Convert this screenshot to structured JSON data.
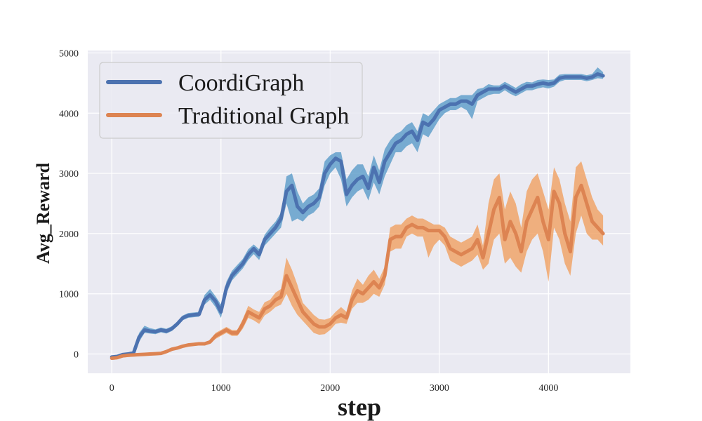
{
  "chart_data": {
    "type": "line",
    "title": "",
    "xlabel": "step",
    "ylabel": "Avg_Reward",
    "xlim": [
      -220,
      4750
    ],
    "ylim": [
      -320,
      5040
    ],
    "xticks": [
      0,
      1000,
      2000,
      3000,
      4000
    ],
    "yticks": [
      0,
      1000,
      2000,
      3000,
      4000,
      5000
    ],
    "grid": true,
    "legend_position": "top-left",
    "series": [
      {
        "name": "CoordiGraph",
        "color": "#4c72b0",
        "band_color": "#5a9bc8",
        "x": [
          0,
          50,
          100,
          150,
          200,
          250,
          300,
          350,
          400,
          450,
          500,
          550,
          600,
          650,
          700,
          750,
          800,
          850,
          900,
          950,
          1000,
          1050,
          1100,
          1150,
          1200,
          1250,
          1300,
          1350,
          1400,
          1450,
          1500,
          1550,
          1600,
          1650,
          1700,
          1750,
          1800,
          1850,
          1900,
          1950,
          2000,
          2050,
          2100,
          2150,
          2200,
          2250,
          2300,
          2350,
          2400,
          2450,
          2500,
          2550,
          2600,
          2650,
          2700,
          2750,
          2800,
          2850,
          2900,
          2950,
          3000,
          3050,
          3100,
          3150,
          3200,
          3250,
          3300,
          3350,
          3400,
          3450,
          3500,
          3550,
          3600,
          3650,
          3700,
          3750,
          3800,
          3850,
          3900,
          3950,
          4000,
          4050,
          4100,
          4150,
          4200,
          4250,
          4300,
          4350,
          4400,
          4450,
          4500
        ],
        "y": [
          -50,
          -40,
          -10,
          0,
          20,
          280,
          400,
          380,
          370,
          400,
          380,
          420,
          500,
          600,
          640,
          650,
          660,
          900,
          980,
          880,
          700,
          1100,
          1300,
          1400,
          1500,
          1650,
          1750,
          1650,
          1900,
          2000,
          2100,
          2250,
          2700,
          2800,
          2450,
          2350,
          2450,
          2500,
          2600,
          3000,
          3150,
          3250,
          3200,
          2650,
          2800,
          2900,
          2950,
          2750,
          3100,
          2850,
          3200,
          3350,
          3500,
          3550,
          3650,
          3700,
          3550,
          3850,
          3800,
          3900,
          4050,
          4100,
          4150,
          4150,
          4200,
          4200,
          4150,
          4300,
          4350,
          4400,
          4400,
          4400,
          4450,
          4400,
          4350,
          4400,
          4450,
          4450,
          4480,
          4500,
          4480,
          4500,
          4580,
          4600,
          4600,
          4600,
          4600,
          4580,
          4600,
          4650,
          4620
        ],
        "y_lower": [
          -80,
          -70,
          -40,
          -30,
          -10,
          200,
          350,
          340,
          330,
          360,
          340,
          380,
          460,
          560,
          600,
          610,
          620,
          820,
          900,
          780,
          600,
          1000,
          1220,
          1320,
          1420,
          1560,
          1660,
          1560,
          1800,
          1900,
          2000,
          2100,
          2500,
          2200,
          2250,
          2200,
          2300,
          2350,
          2450,
          2800,
          3000,
          3100,
          2900,
          2450,
          2600,
          2700,
          2750,
          2550,
          2850,
          2650,
          2950,
          3150,
          3350,
          3350,
          3450,
          3500,
          3350,
          3650,
          3600,
          3750,
          3900,
          4000,
          4050,
          4050,
          4100,
          4050,
          3900,
          4200,
          4250,
          4300,
          4320,
          4320,
          4380,
          4320,
          4280,
          4330,
          4380,
          4380,
          4410,
          4430,
          4410,
          4440,
          4520,
          4550,
          4550,
          4550,
          4550,
          4530,
          4550,
          4580,
          4570
        ],
        "y_upper": [
          -30,
          -20,
          10,
          20,
          50,
          350,
          470,
          430,
          410,
          440,
          420,
          460,
          540,
          640,
          680,
          690,
          700,
          980,
          1080,
          960,
          820,
          1200,
          1380,
          1480,
          1580,
          1740,
          1820,
          1740,
          1980,
          2100,
          2200,
          2350,
          2950,
          3000,
          2700,
          2500,
          2600,
          2650,
          2750,
          3200,
          3300,
          3350,
          3350,
          2900,
          3050,
          3150,
          3150,
          2950,
          3300,
          3050,
          3400,
          3550,
          3650,
          3700,
          3800,
          3850,
          3700,
          4000,
          3950,
          4050,
          4150,
          4200,
          4250,
          4250,
          4300,
          4300,
          4300,
          4400,
          4420,
          4480,
          4460,
          4460,
          4520,
          4470,
          4420,
          4480,
          4520,
          4510,
          4550,
          4560,
          4550,
          4560,
          4640,
          4650,
          4650,
          4650,
          4650,
          4630,
          4650,
          4760,
          4680
        ]
      },
      {
        "name": "Traditional Graph",
        "color": "#dd8452",
        "band_color": "#f0a060",
        "x": [
          0,
          50,
          100,
          150,
          200,
          250,
          300,
          350,
          400,
          450,
          500,
          550,
          600,
          650,
          700,
          750,
          800,
          850,
          900,
          950,
          1000,
          1050,
          1100,
          1150,
          1200,
          1250,
          1300,
          1350,
          1400,
          1450,
          1500,
          1550,
          1600,
          1650,
          1700,
          1750,
          1800,
          1850,
          1900,
          1950,
          2000,
          2050,
          2100,
          2150,
          2200,
          2250,
          2300,
          2350,
          2400,
          2450,
          2500,
          2550,
          2600,
          2650,
          2700,
          2750,
          2800,
          2850,
          2900,
          2950,
          3000,
          3050,
          3100,
          3150,
          3200,
          3250,
          3300,
          3350,
          3400,
          3450,
          3500,
          3550,
          3600,
          3650,
          3700,
          3750,
          3800,
          3850,
          3900,
          3950,
          4000,
          4050,
          4100,
          4150,
          4200,
          4250,
          4300,
          4350,
          4400,
          4450,
          4500
        ],
        "y": [
          -70,
          -60,
          -30,
          -20,
          -15,
          -10,
          -5,
          0,
          5,
          10,
          40,
          80,
          100,
          130,
          150,
          160,
          170,
          170,
          200,
          300,
          350,
          400,
          350,
          350,
          500,
          700,
          650,
          600,
          750,
          800,
          900,
          950,
          1300,
          1100,
          900,
          700,
          600,
          500,
          450,
          450,
          500,
          600,
          650,
          600,
          900,
          1050,
          1000,
          1100,
          1200,
          1100,
          1300,
          1900,
          1950,
          1950,
          2100,
          2150,
          2100,
          2100,
          2050,
          2050,
          2050,
          1950,
          1750,
          1700,
          1650,
          1700,
          1750,
          1900,
          1600,
          2000,
          2400,
          2600,
          1900,
          2200,
          2000,
          1700,
          2200,
          2400,
          2600,
          2200,
          1900,
          2700,
          2500,
          2000,
          1700,
          2600,
          2800,
          2500,
          2200,
          2100,
          2000
        ],
        "y_lower": [
          -100,
          -90,
          -60,
          -50,
          -40,
          -35,
          -30,
          -25,
          -20,
          -15,
          15,
          55,
          75,
          105,
          125,
          135,
          145,
          145,
          170,
          250,
          300,
          350,
          300,
          300,
          420,
          600,
          560,
          500,
          640,
          700,
          780,
          820,
          1000,
          800,
          650,
          550,
          450,
          350,
          320,
          330,
          400,
          500,
          520,
          500,
          750,
          850,
          850,
          900,
          1000,
          950,
          1150,
          1700,
          1750,
          1750,
          1950,
          2000,
          1950,
          1950,
          1600,
          1800,
          1900,
          1800,
          1550,
          1500,
          1450,
          1500,
          1550,
          1650,
          1400,
          1500,
          1900,
          2000,
          1500,
          1600,
          1450,
          1350,
          1700,
          1900,
          2000,
          1700,
          1200,
          2100,
          1900,
          1500,
          1300,
          2000,
          2300,
          2000,
          1900,
          1900,
          1800
        ],
        "y_upper": [
          -40,
          -30,
          0,
          10,
          10,
          15,
          20,
          25,
          30,
          35,
          65,
          105,
          125,
          155,
          175,
          185,
          195,
          195,
          230,
          350,
          400,
          450,
          400,
          400,
          580,
          800,
          740,
          700,
          860,
          900,
          1020,
          1080,
          1600,
          1400,
          1150,
          850,
          750,
          650,
          580,
          570,
          600,
          700,
          780,
          700,
          1050,
          1250,
          1150,
          1300,
          1400,
          1250,
          1450,
          2100,
          2150,
          2150,
          2250,
          2300,
          2250,
          2250,
          2200,
          2150,
          2150,
          2100,
          1950,
          1900,
          1850,
          1900,
          1950,
          2150,
          1800,
          2500,
          2900,
          3000,
          2400,
          2700,
          2500,
          2100,
          2700,
          2900,
          3000,
          2700,
          2400,
          3100,
          2900,
          2500,
          2200,
          3100,
          3200,
          2900,
          2600,
          2400,
          2300
        ]
      }
    ]
  }
}
